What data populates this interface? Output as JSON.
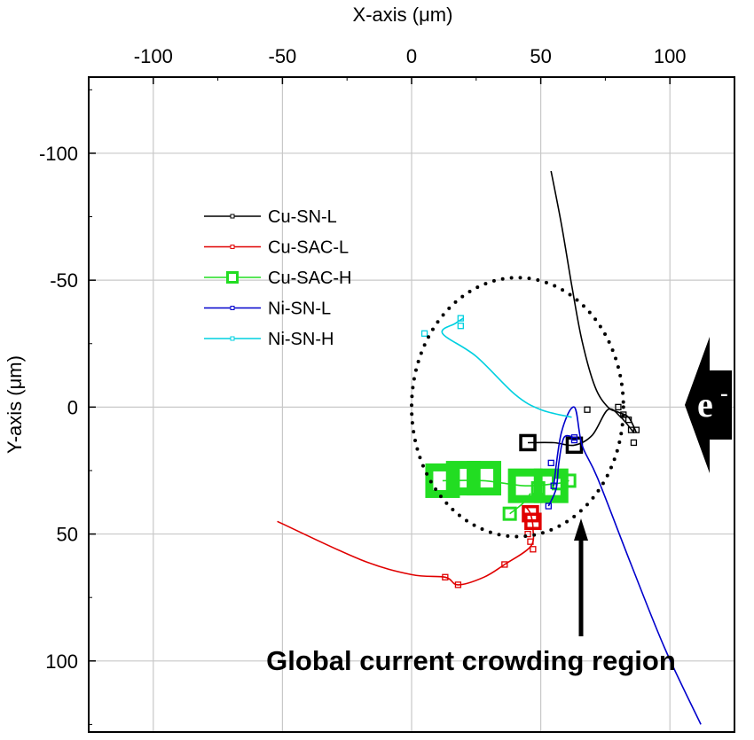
{
  "chart_data": {
    "type": "scatter",
    "x_axis": {
      "label": "X-axis (μm)",
      "position": "top",
      "range": [
        -125,
        125
      ],
      "ticks": [
        -100,
        -50,
        0,
        50,
        100
      ]
    },
    "y_axis": {
      "label": "Y-axis (μm)",
      "position": "left",
      "range": [
        -130,
        128
      ],
      "inverted": true,
      "ticks": [
        -100,
        -50,
        0,
        50,
        100
      ]
    },
    "grid": true,
    "legend_position": "upper-left",
    "series": [
      {
        "name": "Cu-SN-L",
        "color": "#000000",
        "marker": "square-small",
        "markers": [
          [
            80,
            0
          ],
          [
            82,
            3
          ],
          [
            84,
            5
          ],
          [
            87,
            9
          ],
          [
            86,
            14
          ],
          [
            68,
            1
          ],
          [
            85,
            9
          ]
        ],
        "large_markers": [
          [
            45,
            14
          ],
          [
            63,
            15
          ]
        ],
        "paths": [
          [
            [
              54,
              -93
            ],
            [
              58,
              -72
            ],
            [
              62,
              -48
            ],
            [
              66,
              -26
            ],
            [
              71,
              -8
            ],
            [
              76,
              0
            ],
            [
              80,
              2
            ],
            [
              84,
              4
            ],
            [
              87,
              10
            ]
          ],
          [
            [
              45,
              14
            ],
            [
              55,
              14
            ],
            [
              63,
              15
            ],
            [
              70,
              11
            ],
            [
              76,
              1
            ],
            [
              81,
              4
            ],
            [
              86,
              10
            ]
          ]
        ]
      },
      {
        "name": "Cu-SAC-L",
        "color": "#e00000",
        "marker": "square-small",
        "markers": [
          [
            13,
            67
          ],
          [
            18,
            70
          ],
          [
            36,
            62
          ],
          [
            47,
            56
          ],
          [
            46,
            53
          ],
          [
            45,
            50
          ]
        ],
        "large_markers": [
          [
            47,
            45
          ],
          [
            46,
            42
          ]
        ],
        "paths": [
          [
            [
              -52,
              45
            ],
            [
              -20,
              60
            ],
            [
              0,
              66
            ],
            [
              13,
              67
            ],
            [
              18,
              70
            ],
            [
              28,
              67
            ],
            [
              36,
              62
            ],
            [
              46,
              55
            ],
            [
              47,
              48
            ],
            [
              46,
              42
            ],
            [
              44,
              39
            ]
          ]
        ]
      },
      {
        "name": "Cu-SAC-H",
        "color": "#22dd22",
        "marker": "square-large",
        "markers": [
          [
            38,
            42
          ],
          [
            49,
            32
          ],
          [
            57,
            30
          ],
          [
            61,
            29
          ]
        ],
        "large_markers": [
          [
            12,
            29
          ],
          [
            20,
            28
          ],
          [
            28,
            28
          ],
          [
            44,
            31
          ],
          [
            54,
            31
          ]
        ],
        "paths": [
          [
            [
              12,
              29
            ],
            [
              28,
              29
            ],
            [
              44,
              31
            ],
            [
              57,
              30
            ],
            [
              61,
              29
            ]
          ],
          [
            [
              38,
              42
            ],
            [
              43,
              38
            ],
            [
              46,
              34
            ]
          ]
        ]
      },
      {
        "name": "Ni-SN-L",
        "color": "#0000cc",
        "marker": "square-small",
        "markers": [
          [
            54,
            22
          ],
          [
            53,
            39
          ],
          [
            55,
            31
          ],
          [
            63,
            12
          ],
          [
            63,
            13
          ]
        ],
        "large_markers": [],
        "paths": [
          [
            [
              53,
              39
            ],
            [
              56,
              32
            ],
            [
              57,
              22
            ],
            [
              59,
              12
            ],
            [
              63,
              12
            ]
          ],
          [
            [
              55,
              31
            ],
            [
              58,
              10
            ],
            [
              63,
              0
            ],
            [
              66,
              15
            ],
            [
              72,
              28
            ],
            [
              85,
              62
            ],
            [
              98,
              95
            ],
            [
              112,
              125
            ]
          ]
        ]
      },
      {
        "name": "Ni-SN-H",
        "color": "#00d0e0",
        "marker": "square-small",
        "markers": [
          [
            19,
            -35
          ],
          [
            5,
            -29
          ],
          [
            19,
            -32
          ]
        ],
        "large_markers": [],
        "paths": [
          [
            [
              62,
              4
            ],
            [
              50,
              1
            ],
            [
              40,
              -5
            ],
            [
              25,
              -20
            ],
            [
              12,
              -29
            ],
            [
              17,
              -33
            ],
            [
              20,
              -35
            ]
          ]
        ]
      }
    ],
    "annotations": [
      {
        "text": "Global current crowding region",
        "x": 23,
        "y": 100
      },
      {
        "text": "e",
        "superscript": "-",
        "x": 115,
        "y": 0
      }
    ],
    "region_ellipse": {
      "cx": 41,
      "cy": 0,
      "rx": 41,
      "ry": 51
    }
  }
}
